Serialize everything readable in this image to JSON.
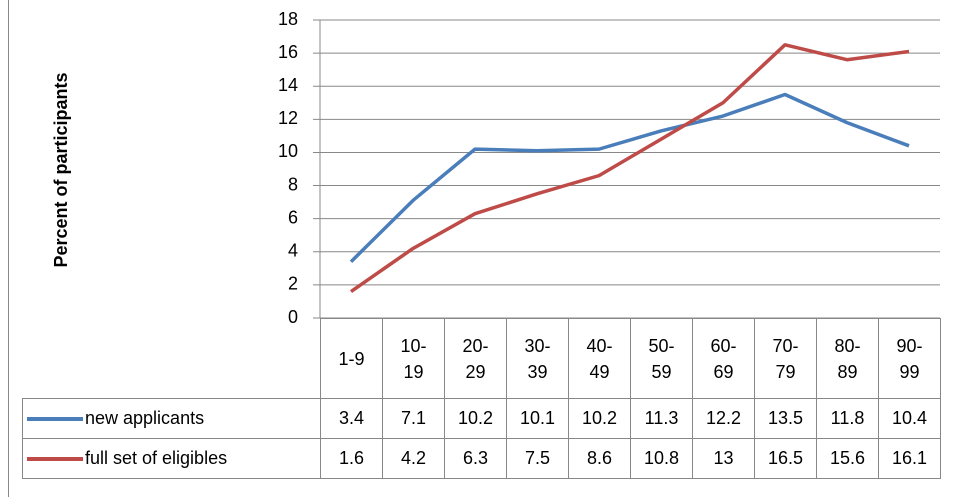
{
  "chart_data": {
    "type": "line",
    "y_label": "Percent of participants",
    "categories": [
      "1-9",
      "10-19",
      "20-29",
      "30-39",
      "40-49",
      "50-59",
      "60-69",
      "70-79",
      "80-89",
      "90-99"
    ],
    "series": [
      {
        "name": "new applicants",
        "color": "#4a7ebb",
        "values": [
          3.4,
          7.1,
          10.2,
          10.1,
          10.2,
          11.3,
          12.2,
          13.5,
          11.8,
          10.4
        ]
      },
      {
        "name": "full set of eligibles",
        "color": "#be4b48",
        "values": [
          1.6,
          4.2,
          6.3,
          7.5,
          8.6,
          10.8,
          13,
          16.5,
          15.6,
          16.1
        ]
      }
    ],
    "ylim": [
      0,
      18
    ],
    "yticks": [
      0,
      2,
      4,
      6,
      8,
      10,
      12,
      14,
      16,
      18
    ],
    "grid": true
  }
}
